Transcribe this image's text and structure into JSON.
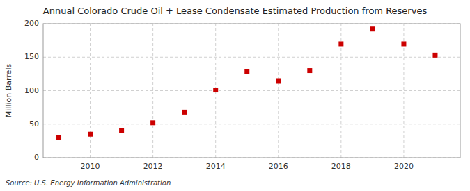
{
  "chart_data": {
    "type": "scatter",
    "title": "Annual Colorado Crude Oil + Lease Condensate Estimated Production from Reserves",
    "ylabel": "Million Barrels",
    "source": "Source: U.S. Energy Information Administration",
    "x": [
      2009,
      2010,
      2011,
      2012,
      2013,
      2014,
      2015,
      2016,
      2017,
      2018,
      2019,
      2020,
      2021
    ],
    "values": [
      30,
      35,
      40,
      52,
      68,
      101,
      128,
      114,
      130,
      170,
      192,
      170,
      153
    ],
    "color": "#cc0000",
    "marker": "square",
    "xlim": [
      2008.5,
      2021.8
    ],
    "ylim": [
      0,
      200
    ],
    "xticks": [
      2010,
      2012,
      2014,
      2016,
      2018,
      2020
    ],
    "yticks": [
      0,
      50,
      100,
      150,
      200
    ],
    "grid": true
  }
}
